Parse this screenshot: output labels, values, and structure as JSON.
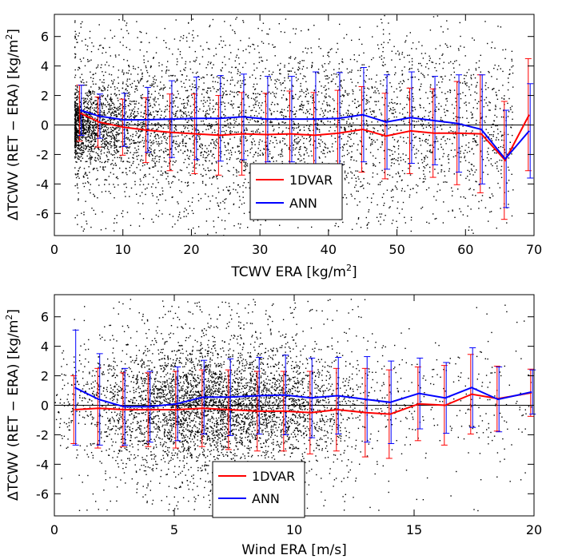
{
  "chart_data": [
    {
      "type": "scatter",
      "xlabel": "TCWV ERA [kg/m²]",
      "xlabel_main": "TCWV ERA [kg/m",
      "xlabel_sup": "2",
      "xlabel_end": "]",
      "ylabel": "ΔTCWV (RET − ERA) [kg/m²]",
      "ylabel_main": "ΔTCWV (RET − ERA) [kg/m",
      "ylabel_sup": "2",
      "ylabel_end": "]",
      "xlim": [
        0,
        70
      ],
      "ylim": [
        -7.5,
        7.5
      ],
      "xticks": [
        0,
        10,
        20,
        30,
        40,
        50,
        60,
        70
      ],
      "yticks": [
        -6,
        -4,
        -2,
        0,
        2,
        4,
        6
      ],
      "legend": {
        "position": "bottom-left",
        "entries": [
          "1DVAR",
          "ANN"
        ]
      },
      "scatter_note": "dense cloud of black points, centred near 0, densest at low TCWV",
      "x": [
        3.8,
        6.5,
        10.1,
        13.5,
        17.0,
        20.6,
        24.1,
        27.5,
        31.0,
        34.5,
        38.0,
        41.5,
        45.0,
        48.4,
        52.0,
        55.4,
        58.9,
        62.3,
        65.8,
        69.3
      ],
      "series": [
        {
          "name": "1DVAR",
          "color": "#ff0000",
          "mean": [
            0.8,
            0.2,
            -0.15,
            -0.35,
            -0.5,
            -0.6,
            -0.7,
            -0.6,
            -0.65,
            -0.6,
            -0.7,
            -0.55,
            -0.3,
            -0.75,
            -0.4,
            -0.55,
            -0.55,
            -0.6,
            -2.4,
            0.7
          ],
          "err": [
            1.9,
            1.7,
            1.9,
            2.2,
            2.6,
            2.7,
            2.7,
            2.8,
            2.8,
            2.9,
            2.9,
            2.9,
            2.9,
            2.9,
            2.9,
            3.0,
            3.5,
            4.0,
            4.0,
            3.8
          ]
        },
        {
          "name": "ANN",
          "color": "#0000ff",
          "mean": [
            1.0,
            0.6,
            0.35,
            0.35,
            0.4,
            0.45,
            0.45,
            0.55,
            0.4,
            0.4,
            0.4,
            0.45,
            0.7,
            0.2,
            0.5,
            0.3,
            0.1,
            -0.3,
            -2.3,
            -0.4
          ],
          "err": [
            1.7,
            1.5,
            1.8,
            2.2,
            2.6,
            2.8,
            2.9,
            2.9,
            2.9,
            2.9,
            3.2,
            3.1,
            3.2,
            3.2,
            3.1,
            3.0,
            3.3,
            3.7,
            3.3,
            3.2
          ]
        }
      ]
    },
    {
      "type": "scatter",
      "xlabel": "Wind ERA [m/s]",
      "xlabel_main": "Wind ERA [m/s]",
      "xlabel_sup": "",
      "xlabel_end": "",
      "ylabel": "ΔTCWV (RET − ERA) [kg/m²]",
      "ylabel_main": "ΔTCWV (RET − ERA) [kg/m",
      "ylabel_sup": "2",
      "ylabel_end": "]",
      "xlim": [
        0,
        20
      ],
      "ylim": [
        -7.5,
        7.5
      ],
      "xticks": [
        0,
        5,
        10,
        15,
        20
      ],
      "yticks": [
        -6,
        -4,
        -2,
        0,
        2,
        4,
        6
      ],
      "legend": {
        "position": "bottom-left",
        "entries": [
          "1DVAR",
          "ANN"
        ]
      },
      "scatter_note": "dense cloud of black points, centred near 0, densest between 3 and 10 m/s",
      "x": [
        0.85,
        1.85,
        2.9,
        3.95,
        5.1,
        6.2,
        7.3,
        8.5,
        9.6,
        10.7,
        11.8,
        13.0,
        14.0,
        15.2,
        16.3,
        17.4,
        18.5,
        19.9
      ],
      "series": [
        {
          "name": "1DVAR",
          "color": "#ff0000",
          "mean": [
            -0.3,
            -0.2,
            -0.3,
            -0.3,
            -0.3,
            -0.2,
            -0.3,
            -0.4,
            -0.4,
            -0.5,
            -0.3,
            -0.5,
            -0.6,
            0.1,
            0.0,
            0.75,
            0.45,
            0.85
          ],
          "err": [
            2.3,
            2.7,
            2.5,
            2.5,
            2.6,
            2.6,
            2.7,
            2.7,
            2.7,
            2.8,
            2.8,
            3.0,
            3.0,
            2.5,
            2.7,
            2.7,
            2.2,
            1.6
          ]
        },
        {
          "name": "ANN",
          "color": "#0000ff",
          "mean": [
            1.2,
            0.4,
            -0.1,
            -0.1,
            0.1,
            0.55,
            0.55,
            0.65,
            0.7,
            0.5,
            0.65,
            0.4,
            0.2,
            0.8,
            0.5,
            1.2,
            0.4,
            0.9
          ],
          "err": [
            3.9,
            3.1,
            2.6,
            2.4,
            2.5,
            2.5,
            2.6,
            2.6,
            2.7,
            2.7,
            2.6,
            2.9,
            2.8,
            2.4,
            2.4,
            2.7,
            2.2,
            1.5
          ]
        }
      ]
    }
  ]
}
